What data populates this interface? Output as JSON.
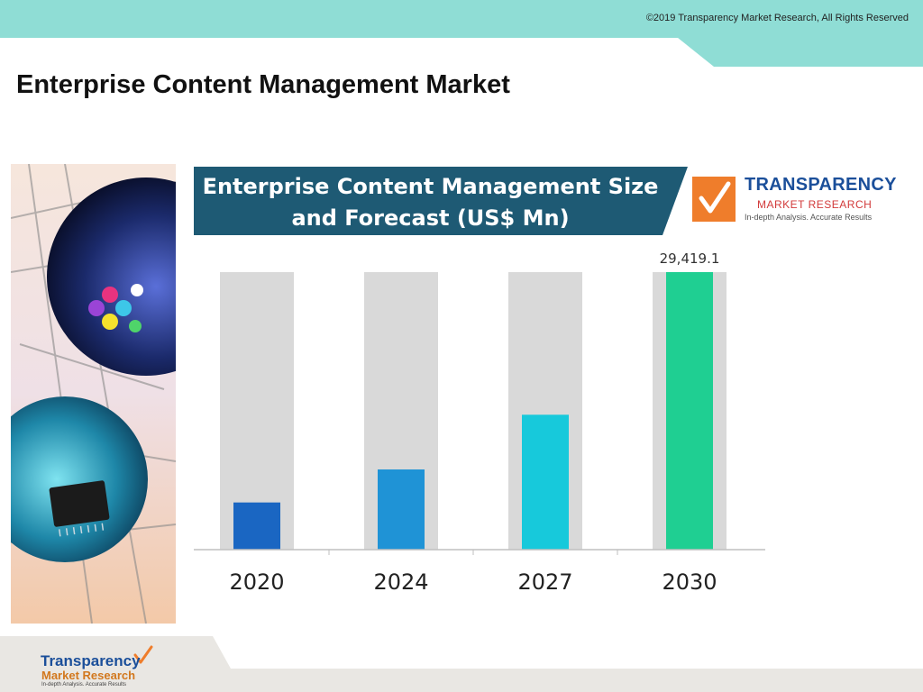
{
  "header": {
    "copyright": "©2019 Transparency Market Research, All Rights Reserved",
    "band_color": "#8fddd5"
  },
  "page": {
    "title": "Enterprise Content Management Market"
  },
  "logo": {
    "name": "TRANSPARENCY",
    "subtitle": "MARKET RESEARCH",
    "tagline": "In-depth Analysis. Accurate Results"
  },
  "footer_logo": {
    "name": "Transparency",
    "subtitle": "Market Research",
    "tagline": "In-depth Analysis. Accurate Results"
  },
  "chart_data": {
    "type": "bar",
    "title_lines": [
      "Enterprise Content Management Size",
      "and Forecast (US$ Mn)"
    ],
    "categories": [
      "2020",
      "2024",
      "2027",
      "2030"
    ],
    "values": [
      5000,
      8500,
      14300,
      29419.1
    ],
    "data_labels": [
      "",
      "",
      "",
      "29,419.1"
    ],
    "colors": [
      "#1a66c2",
      "#1f93d6",
      "#17c9db",
      "#1fcf92"
    ],
    "track_color": "#d9d9d9",
    "ylim": [
      0,
      29419.1
    ],
    "grid": false,
    "legend": "none"
  }
}
